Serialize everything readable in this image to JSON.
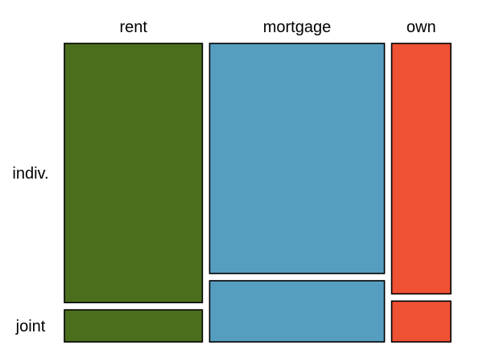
{
  "chart_data": {
    "type": "mosaic",
    "title": "",
    "xlabel": "",
    "ylabel": "",
    "columns": [
      "rent",
      "mortgage",
      "own"
    ],
    "rows": [
      "indiv.",
      "joint"
    ],
    "column_shares": [
      0.371,
      0.47,
      0.159
    ],
    "row_shares_within_column": {
      "rent": {
        "indiv.": 0.89,
        "joint": 0.11
      },
      "mortgage": {
        "indiv.": 0.79,
        "joint": 0.21
      },
      "own": {
        "indiv.": 0.86,
        "joint": 0.14
      }
    },
    "colors": {
      "rent": "#4b6e1c",
      "mortgage": "#569ebf",
      "own": "#ef5134"
    }
  }
}
